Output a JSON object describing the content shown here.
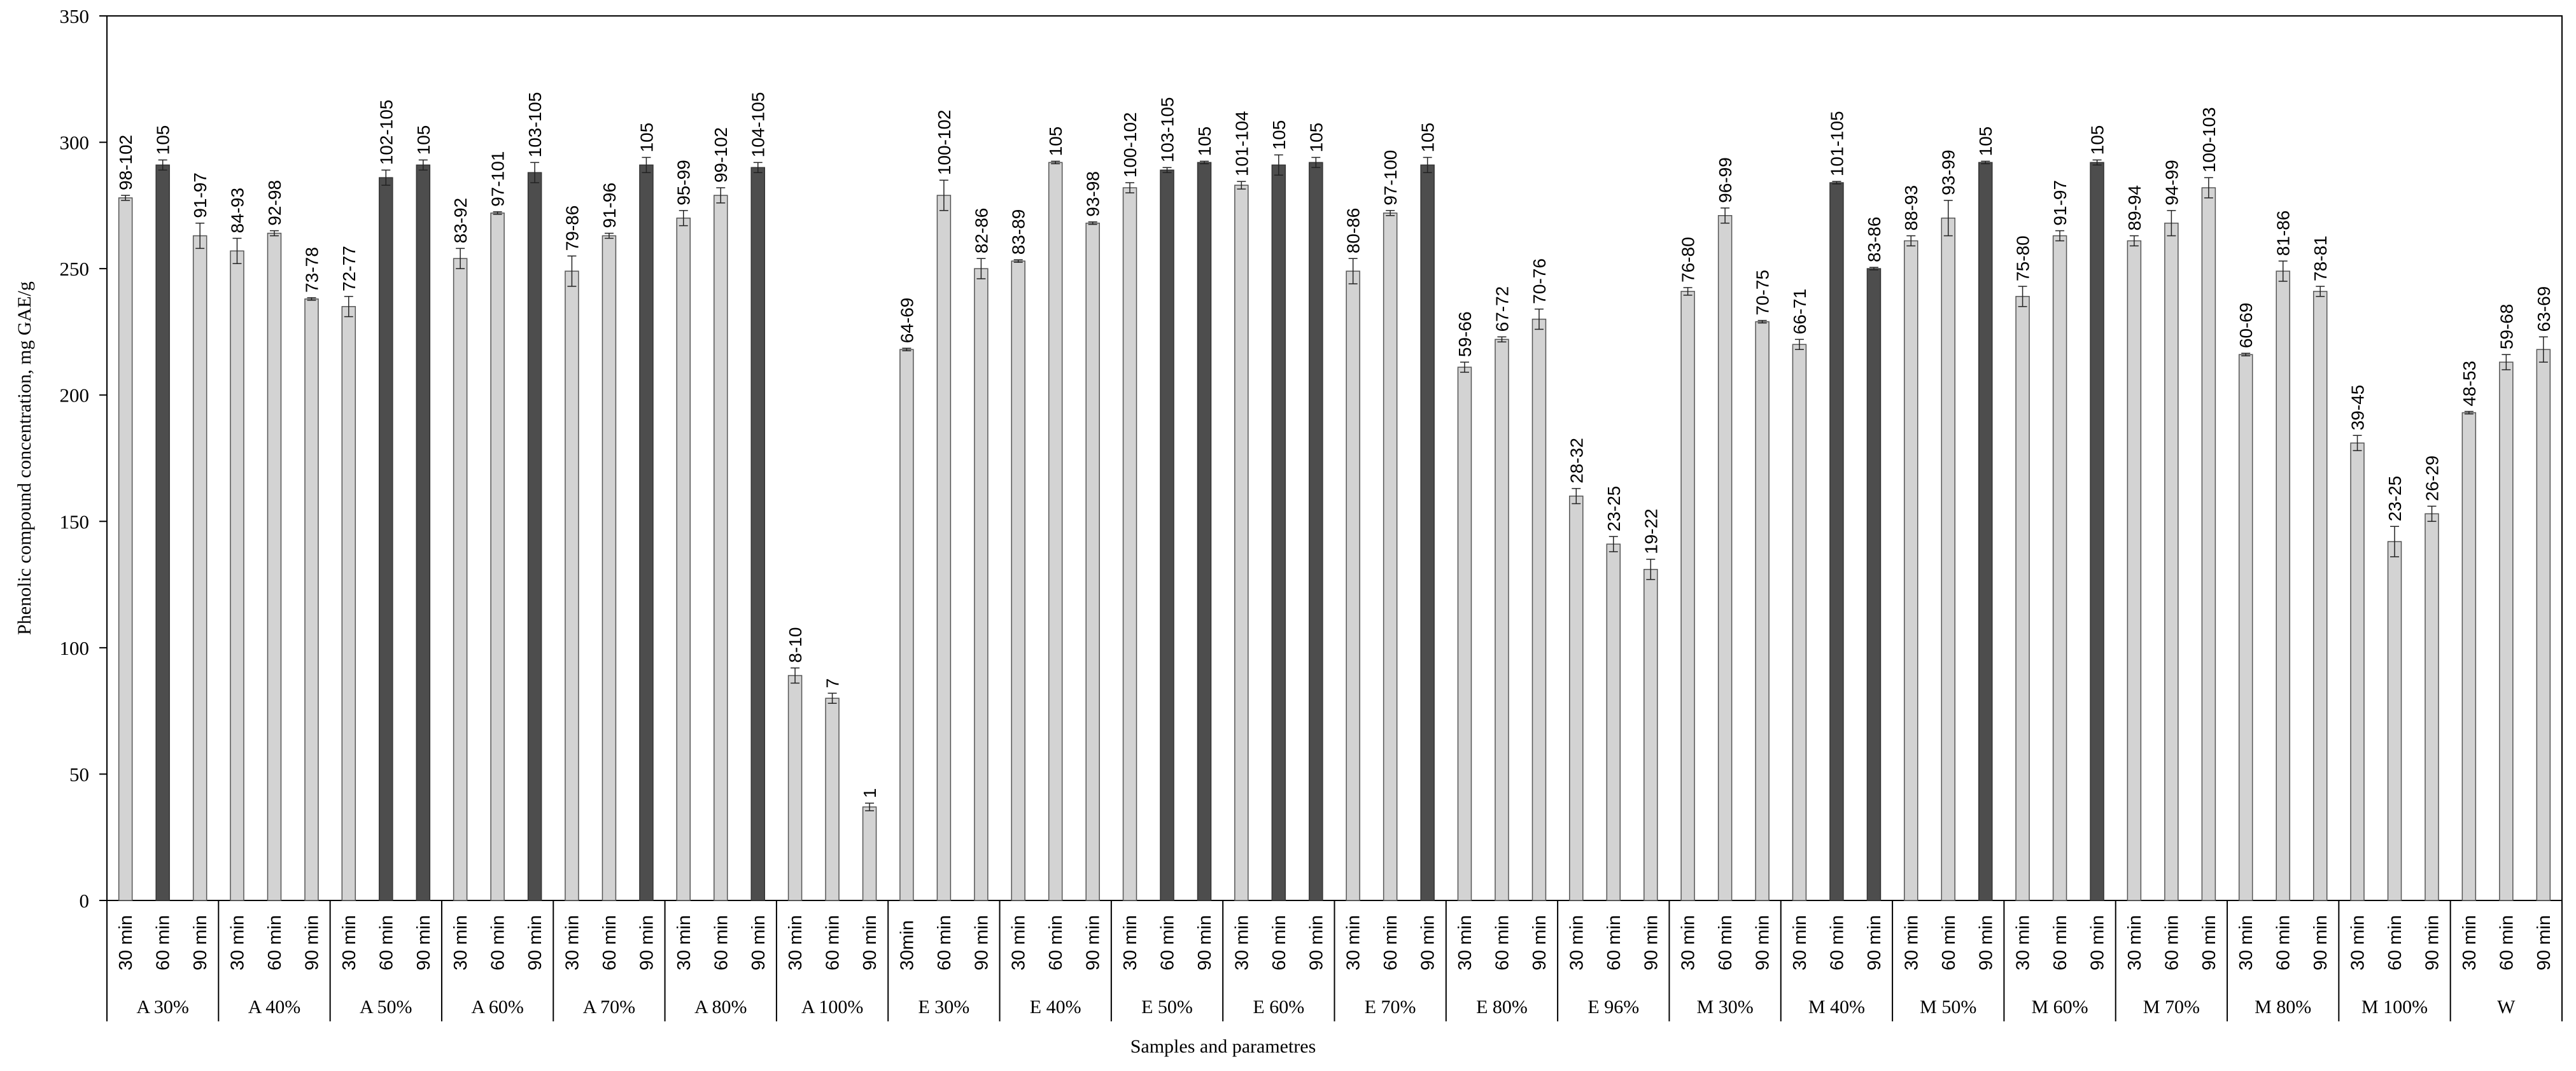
{
  "chart_data": {
    "type": "bar",
    "title": "",
    "xlabel": "Samples and parametres",
    "ylabel": "Phenolic compound concentration, mg GAE/g",
    "ylim": [
      0,
      350
    ],
    "yticks": [
      0,
      50,
      100,
      150,
      200,
      250,
      300,
      350
    ],
    "grid": false,
    "legend": "none",
    "colors": {
      "light_bar": "#d3d3d3",
      "dark_bar": "#4d4d4d",
      "outline": "#555555",
      "axis": "#000000"
    },
    "groups": [
      {
        "label": "A 30%",
        "bars": [
          {
            "time": "30 min",
            "value": 278,
            "err": 1,
            "label": "98-102",
            "dark": false
          },
          {
            "time": "60 min",
            "value": 291,
            "err": 2,
            "label": "105",
            "dark": true
          },
          {
            "time": "90 min",
            "value": 263,
            "err": 5,
            "label": "91-97",
            "dark": false
          }
        ]
      },
      {
        "label": "A 40%",
        "bars": [
          {
            "time": "30 min",
            "value": 257,
            "err": 5,
            "label": "84-93",
            "dark": false
          },
          {
            "time": "60 min",
            "value": 264,
            "err": 1,
            "label": "92-98",
            "dark": false
          },
          {
            "time": "90 min",
            "value": 238,
            "err": 0.5,
            "label": "73-78",
            "dark": false
          }
        ]
      },
      {
        "label": "A 50%",
        "bars": [
          {
            "time": "30 min",
            "value": 235,
            "err": 4,
            "label": "72-77",
            "dark": false
          },
          {
            "time": "60 min",
            "value": 286,
            "err": 3,
            "label": "102-105",
            "dark": true
          },
          {
            "time": "90 min",
            "value": 291,
            "err": 2,
            "label": "105",
            "dark": true
          }
        ]
      },
      {
        "label": "A 60%",
        "bars": [
          {
            "time": "30 min",
            "value": 254,
            "err": 4,
            "label": "83-92",
            "dark": false
          },
          {
            "time": "60 min",
            "value": 272,
            "err": 0.5,
            "label": "97-101",
            "dark": false
          },
          {
            "time": "90 min",
            "value": 288,
            "err": 4,
            "label": "103-105",
            "dark": true
          }
        ]
      },
      {
        "label": "A 70%",
        "bars": [
          {
            "time": "30 min",
            "value": 249,
            "err": 6,
            "label": "79-86",
            "dark": false
          },
          {
            "time": "60 min",
            "value": 263,
            "err": 1,
            "label": "91-96",
            "dark": false
          },
          {
            "time": "90 min",
            "value": 291,
            "err": 3,
            "label": "105",
            "dark": true
          }
        ]
      },
      {
        "label": "A 80%",
        "bars": [
          {
            "time": "30 min",
            "value": 270,
            "err": 3,
            "label": "95-99",
            "dark": false
          },
          {
            "time": "60 min",
            "value": 279,
            "err": 3,
            "label": "99-102",
            "dark": false
          },
          {
            "time": "90 min",
            "value": 290,
            "err": 2,
            "label": "104-105",
            "dark": true
          }
        ]
      },
      {
        "label": "A 100%",
        "bars": [
          {
            "time": "30 min",
            "value": 89,
            "err": 3,
            "label": "8-10",
            "dark": false
          },
          {
            "time": "60 min",
            "value": 80,
            "err": 2,
            "label": "7",
            "dark": false
          },
          {
            "time": "90 min",
            "value": 37,
            "err": 1.5,
            "label": "1",
            "dark": false
          }
        ]
      },
      {
        "label": "E 30%",
        "bars": [
          {
            "time": "30min",
            "value": 218,
            "err": 0.5,
            "label": "64-69",
            "dark": false
          },
          {
            "time": "60 min",
            "value": 279,
            "err": 6,
            "label": "100-102",
            "dark": false
          },
          {
            "time": "90 min",
            "value": 250,
            "err": 4,
            "label": "82-86",
            "dark": false
          }
        ]
      },
      {
        "label": "E 40%",
        "bars": [
          {
            "time": "30 min",
            "value": 253,
            "err": 0.5,
            "label": "83-89",
            "dark": false
          },
          {
            "time": "60 min",
            "value": 292,
            "err": 0.5,
            "label": "105",
            "dark": false
          },
          {
            "time": "90 min",
            "value": 268,
            "err": 0.5,
            "label": "93-98",
            "dark": false
          }
        ]
      },
      {
        "label": "E 50%",
        "bars": [
          {
            "time": "30 min",
            "value": 282,
            "err": 2,
            "label": "100-102",
            "dark": false
          },
          {
            "time": "60 min",
            "value": 289,
            "err": 1,
            "label": "103-105",
            "dark": true
          },
          {
            "time": "90 min",
            "value": 292,
            "err": 0.5,
            "label": "105",
            "dark": true
          }
        ]
      },
      {
        "label": "E 60%",
        "bars": [
          {
            "time": "30 min",
            "value": 283,
            "err": 1.5,
            "label": "101-104",
            "dark": false
          },
          {
            "time": "60 min",
            "value": 291,
            "err": 4,
            "label": "105",
            "dark": true
          },
          {
            "time": "90 min",
            "value": 292,
            "err": 2,
            "label": "105",
            "dark": true
          }
        ]
      },
      {
        "label": "E 70%",
        "bars": [
          {
            "time": "30 min",
            "value": 249,
            "err": 5,
            "label": "80-86",
            "dark": false
          },
          {
            "time": "60 min",
            "value": 272,
            "err": 1,
            "label": "97-100",
            "dark": false
          },
          {
            "time": "90 min",
            "value": 291,
            "err": 3,
            "label": "105",
            "dark": true
          }
        ]
      },
      {
        "label": "E 80%",
        "bars": [
          {
            "time": "30 min",
            "value": 211,
            "err": 2,
            "label": "59-66",
            "dark": false
          },
          {
            "time": "60 min",
            "value": 222,
            "err": 1,
            "label": "67-72",
            "dark": false
          },
          {
            "time": "90 min",
            "value": 230,
            "err": 4,
            "label": "70-76",
            "dark": false
          }
        ]
      },
      {
        "label": "E 96%",
        "bars": [
          {
            "time": "30 min",
            "value": 160,
            "err": 3,
            "label": "28-32",
            "dark": false
          },
          {
            "time": "60 min",
            "value": 141,
            "err": 3,
            "label": "23-25",
            "dark": false
          },
          {
            "time": "90 min",
            "value": 131,
            "err": 4,
            "label": "19-22",
            "dark": false
          }
        ]
      },
      {
        "label": "M 30%",
        "bars": [
          {
            "time": "30 min",
            "value": 241,
            "err": 1.5,
            "label": "76-80",
            "dark": false
          },
          {
            "time": "60 min",
            "value": 271,
            "err": 3,
            "label": "96-99",
            "dark": false
          },
          {
            "time": "90 min",
            "value": 229,
            "err": 0.5,
            "label": "70-75",
            "dark": false
          }
        ]
      },
      {
        "label": "M 40%",
        "bars": [
          {
            "time": "30 min",
            "value": 220,
            "err": 2,
            "label": "66-71",
            "dark": false
          },
          {
            "time": "60 min",
            "value": 284,
            "err": 0.5,
            "label": "101-105",
            "dark": true
          },
          {
            "time": "90 min",
            "value": 250,
            "err": 0.5,
            "label": "83-86",
            "dark": true
          }
        ]
      },
      {
        "label": "M 50%",
        "bars": [
          {
            "time": "30 min",
            "value": 261,
            "err": 2,
            "label": "88-93",
            "dark": false
          },
          {
            "time": "60 min",
            "value": 270,
            "err": 7,
            "label": "93-99",
            "dark": false
          },
          {
            "time": "90 min",
            "value": 292,
            "err": 0.5,
            "label": "105",
            "dark": true
          }
        ]
      },
      {
        "label": "M 60%",
        "bars": [
          {
            "time": "30 min",
            "value": 239,
            "err": 4,
            "label": "75-80",
            "dark": false
          },
          {
            "time": "60 min",
            "value": 263,
            "err": 2,
            "label": "91-97",
            "dark": false
          },
          {
            "time": "90 min",
            "value": 292,
            "err": 1,
            "label": "105",
            "dark": true
          }
        ]
      },
      {
        "label": "M 70%",
        "bars": [
          {
            "time": "30 min",
            "value": 261,
            "err": 2,
            "label": "89-94",
            "dark": false
          },
          {
            "time": "60 min",
            "value": 268,
            "err": 5,
            "label": "94-99",
            "dark": false
          },
          {
            "time": "90 min",
            "value": 282,
            "err": 4,
            "label": "100-103",
            "dark": false
          }
        ]
      },
      {
        "label": "M 80%",
        "bars": [
          {
            "time": "30 min",
            "value": 216,
            "err": 0.5,
            "label": "60-69",
            "dark": false
          },
          {
            "time": "60 min",
            "value": 249,
            "err": 4,
            "label": "81-86",
            "dark": false
          },
          {
            "time": "90 min",
            "value": 241,
            "err": 2,
            "label": "78-81",
            "dark": false
          }
        ]
      },
      {
        "label": "M 100%",
        "bars": [
          {
            "time": "30 min",
            "value": 181,
            "err": 3,
            "label": "39-45",
            "dark": false
          },
          {
            "time": "60 min",
            "value": 142,
            "err": 6,
            "label": "23-25",
            "dark": false
          },
          {
            "time": "90 min",
            "value": 153,
            "err": 3,
            "label": "26-29",
            "dark": false
          }
        ]
      },
      {
        "label": "W",
        "bars": [
          {
            "time": "30 min",
            "value": 193,
            "err": 0.5,
            "label": "48-53",
            "dark": false
          },
          {
            "time": "60 min",
            "value": 213,
            "err": 3,
            "label": "59-68",
            "dark": false
          },
          {
            "time": "90 min",
            "value": 218,
            "err": 5,
            "label": "63-69",
            "dark": false
          }
        ]
      }
    ]
  }
}
